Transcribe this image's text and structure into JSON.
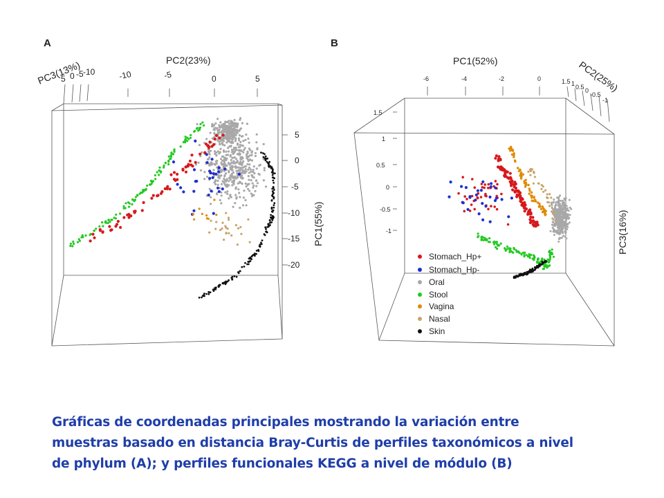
{
  "panel_a": {
    "label": "A"
  },
  "panel_b": {
    "label": "B"
  },
  "caption": [
    "Gráficas de coordenadas principales mostrando la variación entre",
    "muestras basado en distancia Bray-Curtis de perfiles taxonómicos a nivel",
    "de phylum (A); y perfiles funcionales KEGG a nivel de módulo (B)"
  ],
  "colors": {
    "Stomach_Hp+": "#d7191c",
    "Stomach_Hp-": "#1f2fd0",
    "Oral": "#a8a8a8",
    "Stool": "#22c922",
    "Vagina": "#e08a00",
    "Nasal": "#c8a46a",
    "Skin": "#111111"
  },
  "chart_data": [
    {
      "type": "scatter",
      "panel": "A",
      "projection": "3d",
      "axes": {
        "x": {
          "label": "PC2(23%)",
          "ticks": [
            "-10",
            "-5",
            "0",
            "5"
          ]
        },
        "y": {
          "label": "PC3(13%)",
          "ticks": [
            "5",
            "0",
            "-5",
            "-10"
          ]
        },
        "z": {
          "label": "PC1(55%)",
          "ticks": [
            "5",
            "0",
            "-5",
            "-10",
            "-15",
            "-20"
          ]
        }
      },
      "series": [
        "Stomach_Hp+",
        "Stomach_Hp-",
        "Oral",
        "Stool",
        "Vagina",
        "Nasal",
        "Skin"
      ]
    },
    {
      "type": "scatter",
      "panel": "B",
      "projection": "3d",
      "axes": {
        "x": {
          "label": "PC1(52%)",
          "ticks": [
            "-6",
            "-4",
            "-2",
            "0"
          ]
        },
        "y": {
          "label": "PC2(25%)",
          "ticks": [
            "1.5",
            "1",
            "0.5",
            "0",
            "-0.5",
            "-1"
          ]
        },
        "z": {
          "label": "PC3(16%)",
          "ticks": [
            "1.5",
            "1",
            "0.5",
            "0",
            "-0.5",
            "-1"
          ]
        }
      },
      "legend": {
        "position": "bottom-left",
        "entries": [
          "Stomach_Hp+",
          "Stomach_Hp-",
          "Oral",
          "Stool",
          "Vagina",
          "Nasal",
          "Skin"
        ]
      },
      "series": [
        "Stomach_Hp+",
        "Stomach_Hp-",
        "Oral",
        "Stool",
        "Vagina",
        "Nasal",
        "Skin"
      ]
    }
  ]
}
